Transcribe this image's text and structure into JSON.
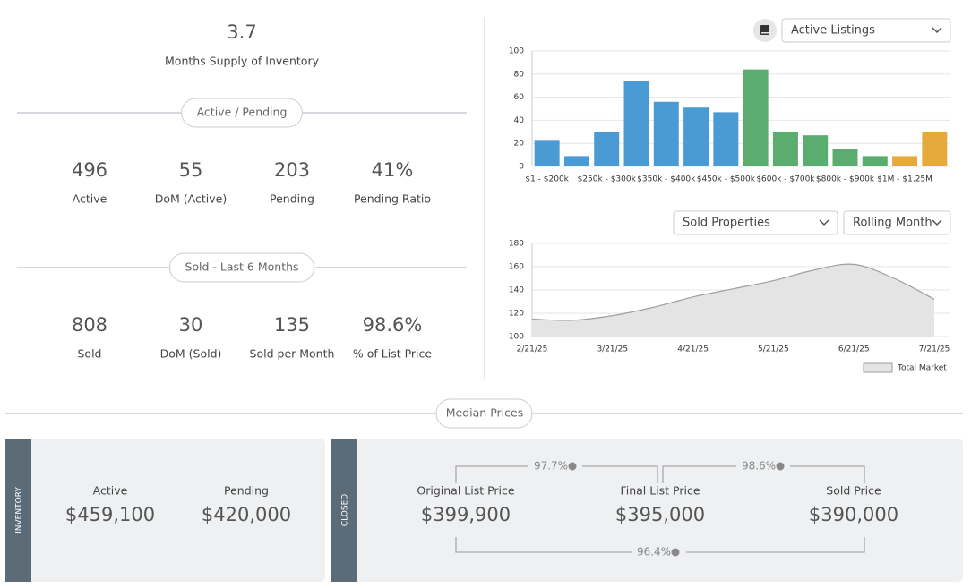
{
  "summary": {
    "value": "3.7",
    "label": "Months Supply of Inventory"
  },
  "active_pending": {
    "title": "Active / Pending",
    "stats": [
      {
        "value": "496",
        "label": "Active"
      },
      {
        "value": "55",
        "label": "DoM (Active)"
      },
      {
        "value": "203",
        "label": "Pending"
      },
      {
        "value": "41%",
        "label": "Pending Ratio"
      }
    ]
  },
  "sold": {
    "title": "Sold - Last 6 Months",
    "stats": [
      {
        "value": "808",
        "label": "Sold"
      },
      {
        "value": "30",
        "label": "DoM (Sold)"
      },
      {
        "value": "135",
        "label": "Sold per Month"
      },
      {
        "value": "98.6%",
        "label": "% of List Price"
      }
    ]
  },
  "median": {
    "title": "Median Prices",
    "inventory": {
      "tab": "INVENTORY",
      "items": [
        {
          "label": "Active",
          "value": "$459,100"
        },
        {
          "label": "Pending",
          "value": "$420,000"
        }
      ]
    },
    "closed": {
      "tab": "CLOSED",
      "items": [
        {
          "label": "Original List Price",
          "value": "$399,900"
        },
        {
          "label": "Final List Price",
          "value": "$395,000"
        },
        {
          "label": "Sold Price",
          "value": "$390,000"
        }
      ],
      "ratios": [
        "97.7%",
        "98.6%",
        "96.4%"
      ]
    }
  },
  "chart_data": [
    {
      "type": "bar",
      "dropdown": "Active Listings",
      "categories": [
        "$1 - $200k",
        null,
        "$250k - $300k",
        null,
        "$350k - $400k",
        null,
        "$450k - $500k",
        null,
        "$600k - $700k",
        null,
        "$800k - $900k",
        null,
        "$1M - $1.25M",
        null
      ],
      "values": [
        23,
        9,
        30,
        74,
        56,
        51,
        47,
        84,
        30,
        27,
        15,
        9,
        9,
        30
      ],
      "colors": [
        "#4a9bd4",
        "#4a9bd4",
        "#4a9bd4",
        "#4a9bd4",
        "#4a9bd4",
        "#4a9bd4",
        "#4a9bd4",
        "#5aad6e",
        "#5aad6e",
        "#5aad6e",
        "#5aad6e",
        "#5aad6e",
        "#e5a93c",
        "#e5a93c"
      ],
      "ylim": [
        0,
        100
      ],
      "yticks": [
        0,
        20,
        40,
        60,
        80,
        100
      ],
      "grid": true
    },
    {
      "type": "area",
      "dropdowns": [
        "Sold Properties",
        "Rolling Month"
      ],
      "categories": [
        "2/21/25",
        null,
        "3/21/25",
        null,
        "4/21/25",
        null,
        "5/21/25",
        null,
        "6/21/25",
        null,
        "7/21/25"
      ],
      "series": [
        {
          "name": "Total Market",
          "color": "#9e9e9e",
          "values": [
            115,
            114,
            118,
            125,
            134,
            141,
            148,
            157,
            162,
            150,
            132
          ]
        }
      ],
      "ylim": [
        100,
        180
      ],
      "yticks": [
        100,
        120,
        140,
        160,
        180
      ],
      "grid": true
    }
  ]
}
